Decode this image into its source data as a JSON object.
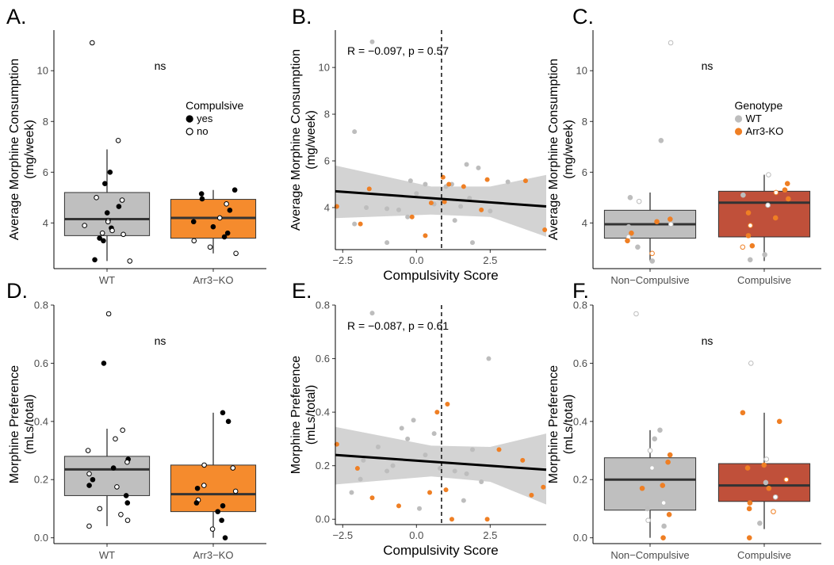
{
  "chart_data": [
    {
      "panel": "A.",
      "type": "box",
      "ylabel": [
        "Average Morphine Consumption",
        "(mg/week)"
      ],
      "categories": [
        "WT",
        "Arr3−KO"
      ],
      "yticks": [
        4,
        6,
        8,
        10
      ],
      "ylim": [
        2.2,
        11.6
      ],
      "annotation": "ns",
      "legend": {
        "title": "Compulsive",
        "items": [
          "yes",
          "no"
        ]
      },
      "boxes": [
        {
          "q1": 3.5,
          "median": 4.15,
          "q3": 5.2,
          "whisker_low": 2.5,
          "whisker_high": 6.9
        },
        {
          "q1": 3.4,
          "median": 4.2,
          "q3": 4.93,
          "whisker_low": 2.8,
          "whisker_high": 5.3
        }
      ],
      "points": [
        [
          {
            "y": 11.1,
            "c": 0
          },
          {
            "y": 7.25,
            "c": 0
          },
          {
            "y": 6.0,
            "c": 1
          },
          {
            "y": 5.55,
            "c": 1
          },
          {
            "y": 5.0,
            "c": 0
          },
          {
            "y": 4.9,
            "c": 0
          },
          {
            "y": 4.65,
            "c": 1
          },
          {
            "y": 4.4,
            "c": 1
          },
          {
            "y": 4.1,
            "c": 0
          },
          {
            "y": 4.05,
            "c": 0
          },
          {
            "y": 3.9,
            "c": 0
          },
          {
            "y": 3.8,
            "c": 1
          },
          {
            "y": 3.7,
            "c": 0
          },
          {
            "y": 3.6,
            "c": 0
          },
          {
            "y": 3.55,
            "c": 0
          },
          {
            "y": 3.4,
            "c": 1
          },
          {
            "y": 3.3,
            "c": 1
          },
          {
            "y": 2.55,
            "c": 1
          },
          {
            "y": 2.5,
            "c": 0
          }
        ],
        [
          {
            "y": 5.3,
            "c": 1
          },
          {
            "y": 5.15,
            "c": 1
          },
          {
            "y": 4.95,
            "c": 1
          },
          {
            "y": 4.75,
            "c": 0
          },
          {
            "y": 4.5,
            "c": 1
          },
          {
            "y": 4.2,
            "c": 0
          },
          {
            "y": 4.05,
            "c": 1
          },
          {
            "y": 3.85,
            "c": 1
          },
          {
            "y": 3.6,
            "c": 1
          },
          {
            "y": 3.45,
            "c": 1
          },
          {
            "y": 3.3,
            "c": 0
          },
          {
            "y": 3.05,
            "c": 0
          },
          {
            "y": 2.8,
            "c": 0
          }
        ]
      ]
    },
    {
      "panel": "B.",
      "type": "scatter",
      "xlabel": "Compulsivity Score",
      "ylabel": [
        "Average Morphine Consumption",
        "(mg/week)"
      ],
      "xticks": [
        -2.5,
        0.0,
        2.5
      ],
      "xtick_labels": [
        "−2.5",
        "0.0",
        "2.5"
      ],
      "yticks": [
        4,
        6,
        8,
        10
      ],
      "xlim": [
        -2.75,
        4.4
      ],
      "ylim": [
        2.2,
        11.6
      ],
      "annotation": "R = −0.097, p = 0.57",
      "vline_x": 0.85,
      "fit": {
        "x0": -2.75,
        "y0": 4.7,
        "x1": 4.4,
        "y1": 4.05
      },
      "band": {
        "upper": [
          [
            -2.75,
            5.8
          ],
          [
            0.5,
            4.9
          ],
          [
            2.5,
            4.9
          ],
          [
            4.4,
            5.4
          ]
        ],
        "lower": [
          [
            4.4,
            2.75
          ],
          [
            2.5,
            3.6
          ],
          [
            0.5,
            3.7
          ],
          [
            -2.75,
            3.55
          ]
        ]
      },
      "points_wt": [
        [
          -1.5,
          11.1
        ],
        [
          -2.1,
          7.25
        ],
        [
          1.7,
          5.85
        ],
        [
          -0.2,
          5.15
        ],
        [
          0.3,
          5.0
        ],
        [
          2.1,
          5.7
        ],
        [
          3.1,
          5.1
        ],
        [
          1.2,
          5.0
        ],
        [
          0.0,
          4.6
        ],
        [
          -1.7,
          4.0
        ],
        [
          -1.0,
          3.95
        ],
        [
          0.6,
          4.15
        ],
        [
          1.8,
          4.4
        ],
        [
          -0.6,
          3.9
        ],
        [
          1.3,
          3.45
        ],
        [
          -2.1,
          3.3
        ],
        [
          -0.3,
          3.6
        ],
        [
          2.5,
          3.85
        ],
        [
          1.0,
          4.9
        ],
        [
          1.5,
          4.05
        ],
        [
          1.9,
          2.5
        ],
        [
          -1.0,
          2.5
        ]
      ],
      "points_ko": [
        [
          -2.7,
          4.05
        ],
        [
          -1.6,
          4.8
        ],
        [
          0.9,
          5.3
        ],
        [
          1.6,
          4.9
        ],
        [
          2.4,
          5.2
        ],
        [
          3.7,
          5.15
        ],
        [
          4.35,
          3.05
        ],
        [
          0.95,
          4.25
        ],
        [
          2.2,
          3.9
        ],
        [
          0.5,
          4.2
        ],
        [
          -0.15,
          3.6
        ],
        [
          -1.9,
          3.3
        ],
        [
          0.3,
          2.8
        ],
        [
          1.1,
          5.0
        ]
      ]
    },
    {
      "panel": "C.",
      "type": "box",
      "ylabel": [
        "Average Morphine Consumption",
        "(mg/week)"
      ],
      "categories": [
        "Non−Compulsive",
        "Compulsive"
      ],
      "yticks": [
        4,
        6,
        8,
        10
      ],
      "ylim": [
        2.2,
        11.6
      ],
      "annotation": "ns",
      "legend": {
        "title": "Genotype",
        "items": [
          "WT",
          "Arr3-KO"
        ]
      },
      "fills": [
        "#bfbfbf",
        "#c0503a"
      ],
      "boxes": [
        {
          "q1": 3.4,
          "median": 3.95,
          "q3": 4.5,
          "whisker_low": 2.5,
          "whisker_high": 5.2
        },
        {
          "q1": 3.45,
          "median": 4.8,
          "q3": 5.25,
          "whisker_low": 2.5,
          "whisker_high": 5.9
        }
      ],
      "points": [
        [
          {
            "y": 11.1,
            "g": 0
          },
          {
            "y": 7.25,
            "g": 0
          },
          {
            "y": 5.0,
            "g": 0
          },
          {
            "y": 4.85,
            "g": 0
          },
          {
            "y": 4.15,
            "g": 1
          },
          {
            "y": 4.05,
            "g": 1
          },
          {
            "y": 3.95,
            "g": 0
          },
          {
            "y": 3.85,
            "g": 0
          },
          {
            "y": 3.6,
            "g": 1
          },
          {
            "y": 3.45,
            "g": 0
          },
          {
            "y": 3.3,
            "g": 1
          },
          {
            "y": 3.05,
            "g": 0
          },
          {
            "y": 2.8,
            "g": 1
          },
          {
            "y": 2.5,
            "g": 0
          }
        ],
        [
          {
            "y": 5.9,
            "g": 0
          },
          {
            "y": 5.55,
            "g": 1
          },
          {
            "y": 5.3,
            "g": 1
          },
          {
            "y": 5.2,
            "g": 1
          },
          {
            "y": 5.1,
            "g": 0
          },
          {
            "y": 4.95,
            "g": 1
          },
          {
            "y": 4.7,
            "g": 0
          },
          {
            "y": 4.4,
            "g": 1
          },
          {
            "y": 4.2,
            "g": 1
          },
          {
            "y": 3.9,
            "g": 1
          },
          {
            "y": 3.5,
            "g": 1
          },
          {
            "y": 3.1,
            "g": 1
          },
          {
            "y": 3.05,
            "g": 1
          },
          {
            "y": 2.75,
            "g": 0
          },
          {
            "y": 2.55,
            "g": 0
          }
        ]
      ]
    },
    {
      "panel": "D.",
      "type": "box",
      "ylabel": [
        "Morphine Preference",
        "(mLs/total)"
      ],
      "categories": [
        "WT",
        "Arr3−KO"
      ],
      "yticks": [
        0.0,
        0.2,
        0.4,
        0.6,
        0.8
      ],
      "ytick_labels": [
        "0.0",
        "0.2",
        "0.4",
        "0.6",
        "0.8"
      ],
      "ylim": [
        -0.02,
        0.8
      ],
      "annotation": "ns",
      "boxes": [
        {
          "q1": 0.145,
          "median": 0.235,
          "q3": 0.28,
          "whisker_low": 0.04,
          "whisker_high": 0.375
        },
        {
          "q1": 0.09,
          "median": 0.15,
          "q3": 0.25,
          "whisker_low": 0.0,
          "whisker_high": 0.43
        }
      ],
      "points": [
        [
          {
            "y": 0.77,
            "c": 0
          },
          {
            "y": 0.6,
            "c": 1
          },
          {
            "y": 0.37,
            "c": 0
          },
          {
            "y": 0.34,
            "c": 0
          },
          {
            "y": 0.3,
            "c": 0
          },
          {
            "y": 0.27,
            "c": 1
          },
          {
            "y": 0.26,
            "c": 0
          },
          {
            "y": 0.24,
            "c": 1
          },
          {
            "y": 0.22,
            "c": 0
          },
          {
            "y": 0.2,
            "c": 1
          },
          {
            "y": 0.18,
            "c": 1
          },
          {
            "y": 0.175,
            "c": 0
          },
          {
            "y": 0.145,
            "c": 1
          },
          {
            "y": 0.12,
            "c": 1
          },
          {
            "y": 0.1,
            "c": 0
          },
          {
            "y": 0.08,
            "c": 0
          },
          {
            "y": 0.06,
            "c": 0
          },
          {
            "y": 0.04,
            "c": 0
          }
        ],
        [
          {
            "y": 0.43,
            "c": 1
          },
          {
            "y": 0.4,
            "c": 1
          },
          {
            "y": 0.25,
            "c": 0
          },
          {
            "y": 0.24,
            "c": 0
          },
          {
            "y": 0.18,
            "c": 0
          },
          {
            "y": 0.17,
            "c": 1
          },
          {
            "y": 0.16,
            "c": 0
          },
          {
            "y": 0.13,
            "c": 0
          },
          {
            "y": 0.12,
            "c": 1
          },
          {
            "y": 0.11,
            "c": 1
          },
          {
            "y": 0.09,
            "c": 1
          },
          {
            "y": 0.06,
            "c": 1
          },
          {
            "y": 0.03,
            "c": 0
          },
          {
            "y": 0.0,
            "c": 1
          }
        ]
      ]
    },
    {
      "panel": "E.",
      "type": "scatter",
      "xlabel": "Compulsivity Score",
      "ylabel": [
        "Morphine Preference",
        "(mLs/total)"
      ],
      "xticks": [
        -2.5,
        0.0,
        2.5
      ],
      "xtick_labels": [
        "−2.5",
        "0.0",
        "2.5"
      ],
      "yticks": [
        0.0,
        0.2,
        0.4,
        0.6,
        0.8
      ],
      "ytick_labels": [
        "0.0",
        "0.2",
        "0.4",
        "0.6",
        "0.8"
      ],
      "xlim": [
        -2.75,
        4.4
      ],
      "ylim": [
        -0.02,
        0.8
      ],
      "annotation": "R = −0.087, p = 0.61",
      "vline_x": 0.85,
      "fit": {
        "x0": -2.75,
        "y0": 0.24,
        "x1": 4.4,
        "y1": 0.185
      },
      "band": {
        "upper": [
          [
            -2.75,
            0.345
          ],
          [
            0.5,
            0.275
          ],
          [
            2.5,
            0.27
          ],
          [
            4.4,
            0.32
          ]
        ],
        "lower": [
          [
            4.4,
            0.055
          ],
          [
            2.5,
            0.14
          ],
          [
            0.5,
            0.16
          ],
          [
            -2.75,
            0.13
          ]
        ]
      },
      "points_wt": [
        [
          -1.5,
          0.77
        ],
        [
          2.45,
          0.6
        ],
        [
          -0.1,
          0.37
        ],
        [
          -0.5,
          0.34
        ],
        [
          0.6,
          0.32
        ],
        [
          -1.3,
          0.27
        ],
        [
          -0.3,
          0.3
        ],
        [
          1.9,
          0.26
        ],
        [
          0.3,
          0.24
        ],
        [
          -1.8,
          0.22
        ],
        [
          1.3,
          0.18
        ],
        [
          1.7,
          0.17
        ],
        [
          -0.8,
          0.2
        ],
        [
          0.8,
          0.19
        ],
        [
          2.2,
          0.14
        ],
        [
          -2.2,
          0.1
        ],
        [
          1.6,
          0.07
        ],
        [
          0.1,
          0.04
        ],
        [
          -1.0,
          0.18
        ],
        [
          -1.9,
          0.15
        ]
      ],
      "points_ko": [
        [
          -2.7,
          0.28
        ],
        [
          1.05,
          0.43
        ],
        [
          0.7,
          0.4
        ],
        [
          2.8,
          0.26
        ],
        [
          3.6,
          0.22
        ],
        [
          4.3,
          0.12
        ],
        [
          3.9,
          0.09
        ],
        [
          -1.5,
          0.08
        ],
        [
          -0.6,
          0.05
        ],
        [
          0.45,
          0.1
        ],
        [
          1.0,
          0.11
        ],
        [
          -2.0,
          0.19
        ],
        [
          2.4,
          0.0
        ],
        [
          1.2,
          0.0
        ]
      ]
    },
    {
      "panel": "F.",
      "type": "box",
      "ylabel": [
        "Morphine Preference",
        "(mLs/total)"
      ],
      "categories": [
        "Non−Compulsive",
        "Compulsive"
      ],
      "yticks": [
        0.0,
        0.2,
        0.4,
        0.6,
        0.8
      ],
      "ytick_labels": [
        "0.0",
        "0.2",
        "0.4",
        "0.6",
        "0.8"
      ],
      "ylim": [
        -0.02,
        0.8
      ],
      "annotation": "ns",
      "fills": [
        "#bfbfbf",
        "#c0503a"
      ],
      "boxes": [
        {
          "q1": 0.095,
          "median": 0.2,
          "q3": 0.275,
          "whisker_low": 0.0,
          "whisker_high": 0.37
        },
        {
          "q1": 0.125,
          "median": 0.18,
          "q3": 0.255,
          "whisker_low": 0.03,
          "whisker_high": 0.43
        }
      ],
      "points": [
        [
          {
            "y": 0.77,
            "g": 0
          },
          {
            "y": 0.37,
            "g": 0
          },
          {
            "y": 0.34,
            "g": 0
          },
          {
            "y": 0.3,
            "g": 0
          },
          {
            "y": 0.285,
            "g": 1
          },
          {
            "y": 0.26,
            "g": 1
          },
          {
            "y": 0.24,
            "g": 0
          },
          {
            "y": 0.18,
            "g": 1
          },
          {
            "y": 0.17,
            "g": 1
          },
          {
            "y": 0.12,
            "g": 0
          },
          {
            "y": 0.1,
            "g": 0
          },
          {
            "y": 0.08,
            "g": 1
          },
          {
            "y": 0.06,
            "g": 0
          },
          {
            "y": 0.04,
            "g": 0
          },
          {
            "y": 0.0,
            "g": 1
          }
        ],
        [
          {
            "y": 0.6,
            "g": 0
          },
          {
            "y": 0.43,
            "g": 1
          },
          {
            "y": 0.4,
            "g": 1
          },
          {
            "y": 0.27,
            "g": 0
          },
          {
            "y": 0.25,
            "g": 1
          },
          {
            "y": 0.24,
            "g": 1
          },
          {
            "y": 0.2,
            "g": 1
          },
          {
            "y": 0.19,
            "g": 0
          },
          {
            "y": 0.17,
            "g": 1
          },
          {
            "y": 0.14,
            "g": 0
          },
          {
            "y": 0.12,
            "g": 1
          },
          {
            "y": 0.1,
            "g": 1
          },
          {
            "y": 0.09,
            "g": 1
          },
          {
            "y": 0.05,
            "g": 0
          },
          {
            "y": 0.0,
            "g": 1
          }
        ]
      ]
    }
  ],
  "colors": {
    "wt": "#bdbdbd",
    "ko": "#ef7f24",
    "box_grey": "#bfbfbf",
    "box_orange": "#f58b2d",
    "box_red": "#c0503a",
    "band": "#c8c8c8"
  }
}
